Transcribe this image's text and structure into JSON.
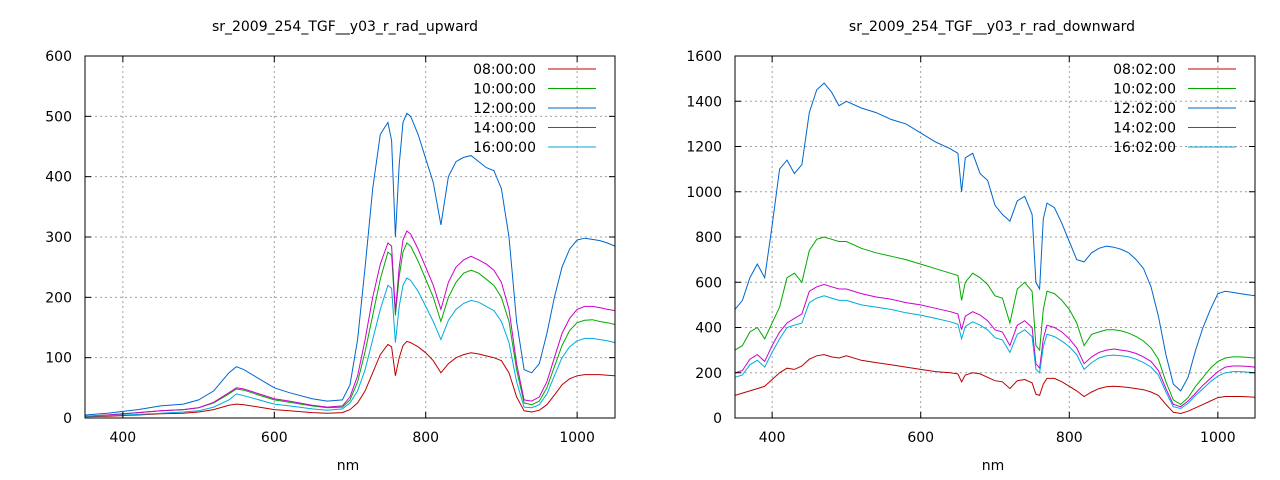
{
  "chart_data": [
    {
      "type": "line",
      "title": "sr_2009_254_TGF__y03_r_rad_upward",
      "xlabel": "nm",
      "ylabel": "",
      "xlim": [
        350,
        1050
      ],
      "ylim": [
        0,
        600
      ],
      "xticks": [
        400,
        600,
        800,
        1000
      ],
      "yticks": [
        0,
        100,
        200,
        300,
        400,
        500,
        600
      ],
      "grid": true,
      "legend_position": "top-right",
      "x": [
        350,
        380,
        400,
        420,
        450,
        480,
        500,
        520,
        540,
        550,
        560,
        580,
        600,
        620,
        650,
        670,
        690,
        700,
        710,
        720,
        730,
        740,
        750,
        755,
        760,
        765,
        770,
        775,
        780,
        790,
        800,
        810,
        820,
        830,
        840,
        850,
        860,
        870,
        880,
        890,
        900,
        910,
        920,
        930,
        940,
        950,
        960,
        970,
        980,
        990,
        1000,
        1010,
        1020,
        1030,
        1040,
        1050
      ],
      "series": [
        {
          "name": "08:00:00",
          "color": "#bb0000",
          "values": [
            2,
            3,
            4,
            5,
            7,
            8,
            10,
            14,
            21,
            23,
            22,
            18,
            14,
            12,
            9,
            8,
            9,
            14,
            25,
            45,
            75,
            105,
            122,
            118,
            70,
            100,
            120,
            127,
            125,
            118,
            108,
            95,
            75,
            90,
            100,
            105,
            108,
            106,
            103,
            100,
            95,
            75,
            35,
            12,
            10,
            13,
            22,
            38,
            55,
            65,
            70,
            72,
            72,
            72,
            71,
            70
          ]
        },
        {
          "name": "10:00:00",
          "color": "#00aa00",
          "values": [
            3,
            5,
            7,
            9,
            12,
            14,
            17,
            25,
            40,
            48,
            46,
            38,
            30,
            26,
            20,
            17,
            18,
            30,
            60,
            110,
            170,
            230,
            275,
            270,
            170,
            235,
            275,
            290,
            285,
            260,
            230,
            200,
            160,
            200,
            225,
            240,
            245,
            240,
            230,
            220,
            200,
            160,
            80,
            25,
            22,
            28,
            50,
            85,
            120,
            145,
            158,
            162,
            163,
            160,
            158,
            155
          ]
        },
        {
          "name": "12:00:00",
          "color": "#0066cc",
          "values": [
            5,
            8,
            11,
            14,
            20,
            23,
            30,
            45,
            75,
            85,
            80,
            65,
            50,
            42,
            32,
            28,
            30,
            55,
            130,
            250,
            380,
            470,
            490,
            460,
            300,
            420,
            490,
            505,
            500,
            470,
            430,
            390,
            320,
            400,
            425,
            432,
            435,
            425,
            415,
            410,
            380,
            300,
            160,
            80,
            75,
            90,
            140,
            200,
            250,
            280,
            295,
            298,
            296,
            294,
            290,
            285
          ]
        },
        {
          "name": "14:00:00",
          "color": "#cc00cc",
          "values": [
            3,
            5,
            7,
            9,
            12,
            14,
            17,
            26,
            42,
            50,
            48,
            40,
            32,
            28,
            21,
            18,
            20,
            35,
            70,
            130,
            200,
            255,
            290,
            285,
            175,
            250,
            295,
            310,
            305,
            280,
            250,
            220,
            180,
            225,
            250,
            262,
            268,
            262,
            255,
            245,
            225,
            180,
            90,
            30,
            28,
            35,
            60,
            100,
            140,
            165,
            180,
            185,
            185,
            183,
            180,
            178
          ]
        },
        {
          "name": "16:00:00",
          "color": "#00aadd",
          "values": [
            3,
            4,
            5,
            6,
            8,
            10,
            12,
            18,
            30,
            40,
            37,
            30,
            23,
            20,
            15,
            13,
            15,
            25,
            45,
            80,
            130,
            180,
            220,
            215,
            125,
            185,
            220,
            232,
            228,
            210,
            185,
            160,
            130,
            162,
            180,
            190,
            195,
            192,
            185,
            178,
            160,
            125,
            60,
            18,
            17,
            22,
            40,
            70,
            100,
            118,
            128,
            132,
            132,
            130,
            128,
            125
          ]
        }
      ]
    },
    {
      "type": "line",
      "title": "sr_2009_254_TGF__y03_r_rad_downward",
      "xlabel": "nm",
      "ylabel": "",
      "xlim": [
        350,
        1050
      ],
      "ylim": [
        0,
        1600
      ],
      "xticks": [
        400,
        600,
        800,
        1000
      ],
      "yticks": [
        0,
        200,
        400,
        600,
        800,
        1000,
        1200,
        1400,
        1600
      ],
      "grid": true,
      "legend_position": "top-right",
      "x": [
        350,
        360,
        370,
        380,
        390,
        400,
        410,
        420,
        430,
        440,
        450,
        460,
        470,
        480,
        490,
        500,
        520,
        540,
        560,
        580,
        600,
        620,
        640,
        650,
        655,
        660,
        670,
        680,
        690,
        700,
        710,
        720,
        730,
        740,
        750,
        755,
        760,
        765,
        770,
        780,
        790,
        800,
        810,
        820,
        830,
        840,
        850,
        860,
        870,
        880,
        890,
        900,
        910,
        920,
        930,
        940,
        950,
        960,
        970,
        980,
        990,
        1000,
        1010,
        1020,
        1030,
        1040,
        1050
      ],
      "series": [
        {
          "name": "08:02:00",
          "color": "#bb0000",
          "values": [
            100,
            110,
            120,
            130,
            140,
            170,
            200,
            220,
            215,
            230,
            260,
            275,
            280,
            270,
            265,
            275,
            255,
            245,
            235,
            225,
            215,
            205,
            200,
            195,
            160,
            190,
            200,
            195,
            180,
            165,
            160,
            130,
            165,
            170,
            155,
            105,
            100,
            150,
            175,
            175,
            160,
            140,
            120,
            95,
            115,
            130,
            138,
            140,
            138,
            135,
            130,
            125,
            115,
            100,
            60,
            25,
            20,
            30,
            45,
            60,
            75,
            90,
            95,
            95,
            95,
            94,
            92
          ]
        },
        {
          "name": "10:02:00",
          "color": "#00aa00",
          "values": [
            300,
            320,
            380,
            400,
            350,
            420,
            490,
            620,
            640,
            600,
            740,
            790,
            800,
            790,
            780,
            780,
            750,
            730,
            715,
            700,
            680,
            660,
            640,
            630,
            520,
            600,
            640,
            620,
            590,
            540,
            530,
            420,
            570,
            600,
            560,
            320,
            300,
            480,
            560,
            550,
            520,
            480,
            420,
            320,
            370,
            380,
            390,
            390,
            385,
            375,
            360,
            340,
            310,
            260,
            160,
            80,
            60,
            90,
            140,
            180,
            220,
            250,
            265,
            270,
            270,
            268,
            265
          ]
        },
        {
          "name": "12:02:00",
          "color": "#0066cc",
          "values": [
            480,
            520,
            620,
            680,
            620,
            850,
            1100,
            1140,
            1080,
            1120,
            1350,
            1450,
            1480,
            1440,
            1380,
            1400,
            1370,
            1350,
            1320,
            1300,
            1260,
            1220,
            1190,
            1170,
            1000,
            1150,
            1170,
            1080,
            1050,
            940,
            900,
            870,
            960,
            980,
            900,
            600,
            570,
            880,
            950,
            930,
            860,
            780,
            700,
            690,
            730,
            750,
            760,
            755,
            745,
            730,
            700,
            660,
            580,
            450,
            280,
            150,
            120,
            180,
            300,
            400,
            480,
            550,
            560,
            555,
            550,
            545,
            540
          ]
        },
        {
          "name": "14:02:00",
          "color": "#cc00cc",
          "values": [
            200,
            210,
            260,
            280,
            250,
            320,
            380,
            420,
            440,
            460,
            560,
            580,
            590,
            580,
            570,
            570,
            550,
            535,
            525,
            510,
            500,
            485,
            470,
            460,
            390,
            450,
            470,
            455,
            430,
            390,
            380,
            320,
            410,
            430,
            400,
            240,
            220,
            350,
            410,
            400,
            380,
            350,
            310,
            240,
            270,
            290,
            300,
            305,
            300,
            295,
            285,
            270,
            250,
            210,
            130,
            60,
            50,
            75,
            110,
            145,
            175,
            205,
            225,
            230,
            230,
            228,
            225
          ]
        },
        {
          "name": "16:02:00",
          "color": "#00aadd",
          "values": [
            180,
            190,
            235,
            255,
            225,
            290,
            350,
            400,
            410,
            420,
            510,
            530,
            540,
            530,
            520,
            520,
            500,
            490,
            480,
            465,
            455,
            440,
            425,
            415,
            350,
            405,
            425,
            410,
            390,
            355,
            345,
            290,
            370,
            390,
            360,
            215,
            200,
            315,
            370,
            360,
            340,
            315,
            280,
            215,
            245,
            265,
            275,
            278,
            275,
            270,
            260,
            245,
            225,
            190,
            115,
            50,
            42,
            65,
            100,
            130,
            160,
            185,
            200,
            205,
            205,
            203,
            200
          ]
        }
      ]
    }
  ]
}
